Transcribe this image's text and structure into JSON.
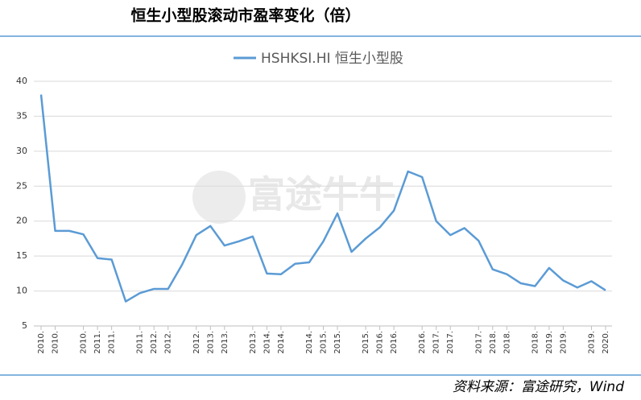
{
  "chart_data": {
    "type": "line",
    "title": "恒生小型股滚动市盈率变化（倍）",
    "source": "资料来源：富途研究，Wind",
    "watermark": "富途牛牛",
    "categories": [
      "2010.",
      "2010.",
      null,
      "2010.",
      "2011.",
      "2011.",
      null,
      "2011.",
      "2012.",
      "2012.",
      null,
      "2012.",
      "2013.",
      "2013.",
      null,
      "2013.",
      "2014.",
      "2014.",
      null,
      "2014.",
      "2015.",
      "2015.",
      null,
      "2015.",
      "2016.",
      "2016.",
      null,
      "2016.",
      "2017.",
      "2017.",
      null,
      "2017.",
      "2018.",
      "2018.",
      null,
      "2018.",
      "2019.",
      "2019.",
      null,
      "2019.",
      "2020."
    ],
    "series": [
      {
        "name": "HSHKSI.HI 恒生小型股",
        "color": "#5b9bd5",
        "values": [
          38.1,
          18.6,
          18.6,
          18.1,
          14.7,
          14.5,
          8.5,
          9.7,
          10.3,
          10.3,
          13.8,
          18.0,
          19.3,
          16.5,
          17.1,
          17.8,
          12.5,
          12.4,
          13.9,
          14.1,
          17.1,
          21.1,
          15.6,
          17.5,
          19.1,
          21.5,
          27.1,
          26.3,
          20.0,
          18.0,
          19.0,
          17.2,
          13.1,
          12.4,
          11.1,
          10.7,
          13.3,
          11.5,
          10.5,
          11.4,
          10.1
        ]
      }
    ],
    "ylim": [
      5,
      40
    ],
    "yticks": [
      5,
      10,
      15,
      20,
      25,
      30,
      35,
      40
    ],
    "grid": true,
    "legend": "top"
  }
}
